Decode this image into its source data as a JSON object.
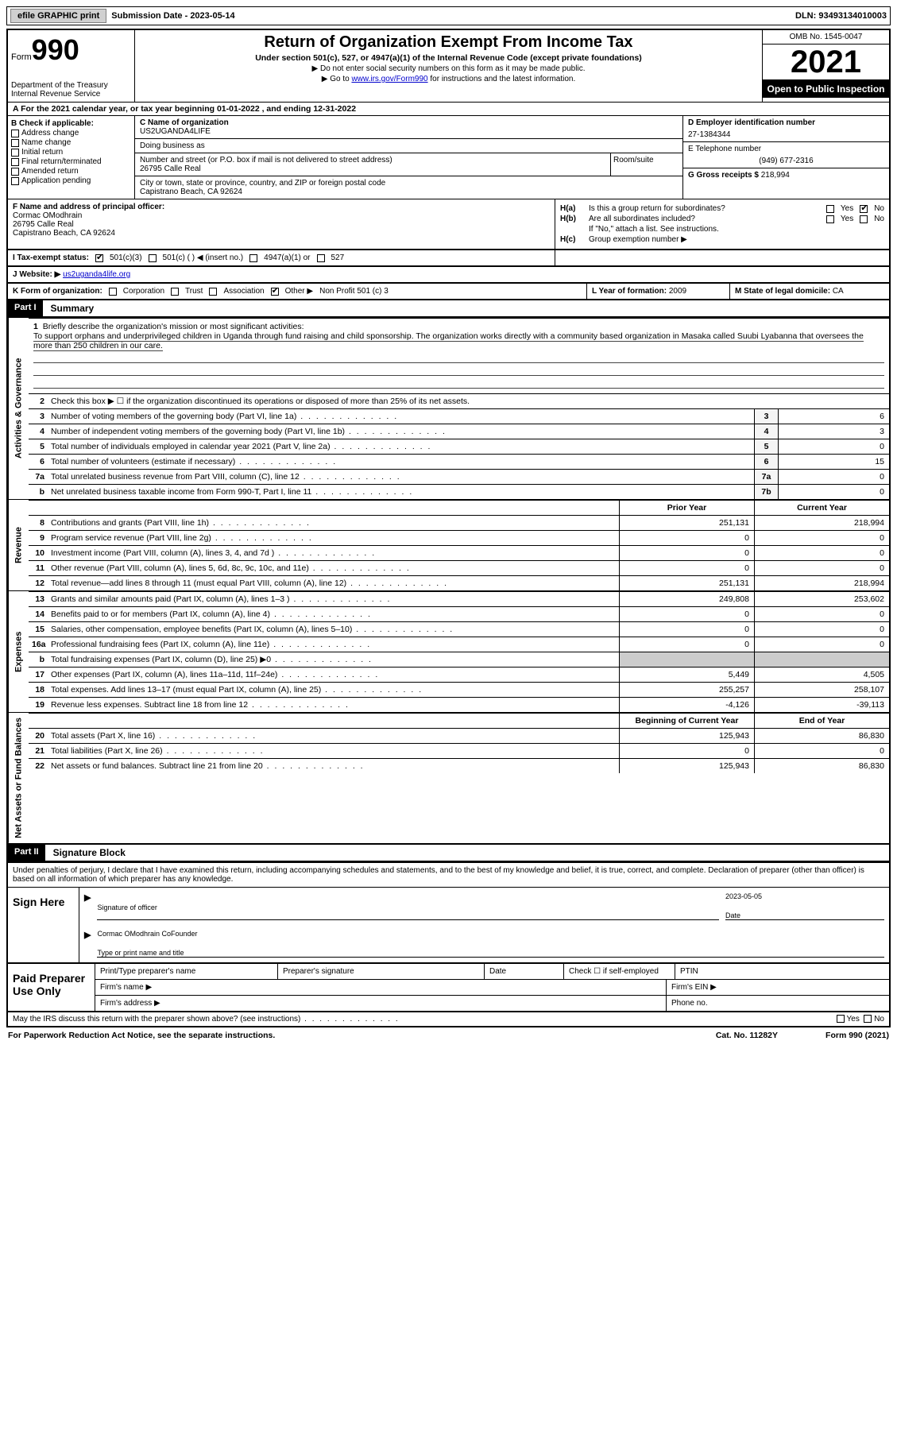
{
  "colors": {
    "black": "#000000",
    "white": "#ffffff",
    "shade": "#cccccc",
    "link": "#0000cc",
    "btn_bg": "#d0d0d0"
  },
  "topbar": {
    "efile_label": "efile GRAPHIC print",
    "submission_label": "Submission Date - 2023-05-14",
    "dln_label": "DLN: 93493134010003"
  },
  "header": {
    "form_word": "Form",
    "form_number": "990",
    "dept": "Department of the Treasury\nInternal Revenue Service",
    "title": "Return of Organization Exempt From Income Tax",
    "subtitle": "Under section 501(c), 527, or 4947(a)(1) of the Internal Revenue Code (except private foundations)",
    "note1": "▶ Do not enter social security numbers on this form as it may be made public.",
    "note2_pre": "▶ Go to ",
    "note2_link": "www.irs.gov/Form990",
    "note2_post": " for instructions and the latest information.",
    "omb": "OMB No. 1545-0047",
    "year": "2021",
    "open": "Open to Public Inspection"
  },
  "lineA": "A  For the 2021 calendar year, or tax year beginning 01-01-2022    , and ending 12-31-2022",
  "boxB": {
    "label": "B Check if applicable:",
    "opts": [
      "Address change",
      "Name change",
      "Initial return",
      "Final return/terminated",
      "Amended return",
      "Application pending"
    ]
  },
  "boxC": {
    "name_label": "C Name of organization",
    "name": "US2UGANDA4LIFE",
    "dba_label": "Doing business as",
    "dba": "",
    "addr_label": "Number and street (or P.O. box if mail is not delivered to street address)",
    "room_label": "Room/suite",
    "addr": "26795 Calle Real",
    "city_label": "City or town, state or province, country, and ZIP or foreign postal code",
    "city": "Capistrano Beach, CA   92624"
  },
  "boxD": {
    "ein_label": "D Employer identification number",
    "ein": "27-1384344",
    "tel_label": "E Telephone number",
    "tel": "(949) 677-2316",
    "gross_label": "G Gross receipts $",
    "gross": "218,994"
  },
  "boxF": {
    "label": "F Name and address of principal officer:",
    "name": "Cormac OModhrain",
    "addr1": "26795 Calle Real",
    "addr2": "Capistrano Beach, CA   92624"
  },
  "boxH": {
    "ha_label": "H(a)",
    "ha_q": "Is this a group return for subordinates?",
    "ha_yes": "Yes",
    "ha_no": "No",
    "ha_no_checked": true,
    "hb_label": "H(b)",
    "hb_q": "Are all subordinates included?",
    "hb_note": "If \"No,\" attach a list. See instructions.",
    "hc_label": "H(c)",
    "hc_q": "Group exemption number ▶"
  },
  "boxI": {
    "label": "I   Tax-exempt status:",
    "o1": "501(c)(3)",
    "o1_checked": true,
    "o2": "501(c) (   ) ◀ (insert no.)",
    "o3": "4947(a)(1) or",
    "o4": "527"
  },
  "boxJ": {
    "label": "J   Website: ▶",
    "url": "us2uganda4life.org"
  },
  "boxK": {
    "label": "K Form of organization:",
    "opts": [
      "Corporation",
      "Trust",
      "Association",
      "Other ▶"
    ],
    "other_checked": true,
    "other_text": "Non Profit 501 (c) 3",
    "L_label": "L Year of formation:",
    "L_val": "2009",
    "M_label": "M State of legal domicile:",
    "M_val": "CA"
  },
  "part1": {
    "hdr": "Part I",
    "title": "Summary",
    "side_gov": "Activities & Governance",
    "side_rev": "Revenue",
    "side_exp": "Expenses",
    "side_net": "Net Assets or Fund Balances",
    "line1_label": "1",
    "line1_q": "Briefly describe the organization's mission or most significant activities:",
    "line1_text": "To support orphans and underprivileged children in Uganda through fund raising and child sponsorship. The organization works directly with a community based organization in Masaka called Suubi Lyabanna that oversees the more than 250 children in our care.",
    "line2_label": "2",
    "line2_q": "Check this box ▶ ☐  if the organization discontinued its operations or disposed of more than 25% of its net assets.",
    "rows_gov": [
      {
        "n": "3",
        "d": "Number of voting members of the governing body (Part VI, line 1a)",
        "box": "3",
        "v": "6"
      },
      {
        "n": "4",
        "d": "Number of independent voting members of the governing body (Part VI, line 1b)",
        "box": "4",
        "v": "3"
      },
      {
        "n": "5",
        "d": "Total number of individuals employed in calendar year 2021 (Part V, line 2a)",
        "box": "5",
        "v": "0"
      },
      {
        "n": "6",
        "d": "Total number of volunteers (estimate if necessary)",
        "box": "6",
        "v": "15"
      },
      {
        "n": "7a",
        "d": "Total unrelated business revenue from Part VIII, column (C), line 12",
        "box": "7a",
        "v": "0"
      },
      {
        "n": "b",
        "d": "Net unrelated business taxable income from Form 990-T, Part I, line 11",
        "box": "7b",
        "v": "0"
      }
    ],
    "col_prior": "Prior Year",
    "col_curr": "Current Year",
    "rows_rev": [
      {
        "n": "8",
        "d": "Contributions and grants (Part VIII, line 1h)",
        "p": "251,131",
        "c": "218,994"
      },
      {
        "n": "9",
        "d": "Program service revenue (Part VIII, line 2g)",
        "p": "0",
        "c": "0"
      },
      {
        "n": "10",
        "d": "Investment income (Part VIII, column (A), lines 3, 4, and 7d )",
        "p": "0",
        "c": "0"
      },
      {
        "n": "11",
        "d": "Other revenue (Part VIII, column (A), lines 5, 6d, 8c, 9c, 10c, and 11e)",
        "p": "0",
        "c": "0"
      },
      {
        "n": "12",
        "d": "Total revenue—add lines 8 through 11 (must equal Part VIII, column (A), line 12)",
        "p": "251,131",
        "c": "218,994"
      }
    ],
    "rows_exp": [
      {
        "n": "13",
        "d": "Grants and similar amounts paid (Part IX, column (A), lines 1–3 )",
        "p": "249,808",
        "c": "253,602"
      },
      {
        "n": "14",
        "d": "Benefits paid to or for members (Part IX, column (A), line 4)",
        "p": "0",
        "c": "0"
      },
      {
        "n": "15",
        "d": "Salaries, other compensation, employee benefits (Part IX, column (A), lines 5–10)",
        "p": "0",
        "c": "0"
      },
      {
        "n": "16a",
        "d": "Professional fundraising fees (Part IX, column (A), line 11e)",
        "p": "0",
        "c": "0"
      },
      {
        "n": "b",
        "d": "Total fundraising expenses (Part IX, column (D), line 25) ▶0",
        "p": "shade",
        "c": "shade"
      },
      {
        "n": "17",
        "d": "Other expenses (Part IX, column (A), lines 11a–11d, 11f–24e)",
        "p": "5,449",
        "c": "4,505"
      },
      {
        "n": "18",
        "d": "Total expenses. Add lines 13–17 (must equal Part IX, column (A), line 25)",
        "p": "255,257",
        "c": "258,107"
      },
      {
        "n": "19",
        "d": "Revenue less expenses. Subtract line 18 from line 12",
        "p": "-4,126",
        "c": "-39,113"
      }
    ],
    "col_begin": "Beginning of Current Year",
    "col_end": "End of Year",
    "rows_net": [
      {
        "n": "20",
        "d": "Total assets (Part X, line 16)",
        "p": "125,943",
        "c": "86,830"
      },
      {
        "n": "21",
        "d": "Total liabilities (Part X, line 26)",
        "p": "0",
        "c": "0"
      },
      {
        "n": "22",
        "d": "Net assets or fund balances. Subtract line 21 from line 20",
        "p": "125,943",
        "c": "86,830"
      }
    ]
  },
  "part2": {
    "hdr": "Part II",
    "title": "Signature Block",
    "para": "Under penalties of perjury, I declare that I have examined this return, including accompanying schedules and statements, and to the best of my knowledge and belief, it is true, correct, and complete. Declaration of preparer (other than officer) is based on all information of which preparer has any knowledge.",
    "sign_here": "Sign Here",
    "sig_officer": "Signature of officer",
    "sig_date_val": "2023-05-05",
    "sig_date": "Date",
    "name_title": "Cormac OModhrain  CoFounder",
    "name_title_label": "Type or print name and title",
    "paid": "Paid Preparer Use Only",
    "pp_name": "Print/Type preparer's name",
    "pp_sig": "Preparer's signature",
    "pp_date": "Date",
    "pp_check": "Check ☐ if self-employed",
    "pp_ptin": "PTIN",
    "firm_name": "Firm's name   ▶",
    "firm_ein": "Firm's EIN ▶",
    "firm_addr": "Firm's address ▶",
    "firm_phone": "Phone no."
  },
  "footer": {
    "q": "May the IRS discuss this return with the preparer shown above? (see instructions)",
    "yes": "Yes",
    "no": "No",
    "paperwork": "For Paperwork Reduction Act Notice, see the separate instructions.",
    "cat": "Cat. No. 11282Y",
    "form": "Form 990 (2021)"
  }
}
